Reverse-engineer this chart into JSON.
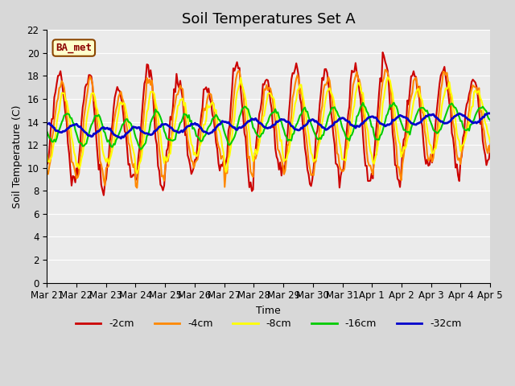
{
  "title": "Soil Temperatures Set A",
  "xlabel": "Time",
  "ylabel": "Soil Temperature (C)",
  "annotation": "BA_met",
  "ylim": [
    0,
    22
  ],
  "yticks": [
    0,
    2,
    4,
    6,
    8,
    10,
    12,
    14,
    16,
    18,
    20,
    22
  ],
  "series_names": [
    "-2cm",
    "-4cm",
    "-8cm",
    "-16cm",
    "-32cm"
  ],
  "series_colors": [
    "#cc0000",
    "#ff8800",
    "#ffff00",
    "#00cc00",
    "#0000cc"
  ],
  "series_linewidths": [
    1.5,
    1.5,
    1.5,
    1.5,
    2.0
  ],
  "bg_color": "#e8e8e8",
  "plot_bg_color": "#f0f0f0",
  "title_fontsize": 13,
  "tick_label_fontsize": 8.5,
  "x_tick_labels": [
    "Mar 21",
    "Mar 22",
    "Mar 23",
    "Mar 24",
    "Mar 25",
    "Mar 26",
    "Mar 27",
    "Mar 28",
    "Mar 29",
    "Mar 30",
    "Mar 31",
    "Apr 1",
    "Apr 2",
    "Apr 3",
    "Apr 4",
    "Apr 5"
  ],
  "num_points_per_day": 24,
  "num_days": 16
}
